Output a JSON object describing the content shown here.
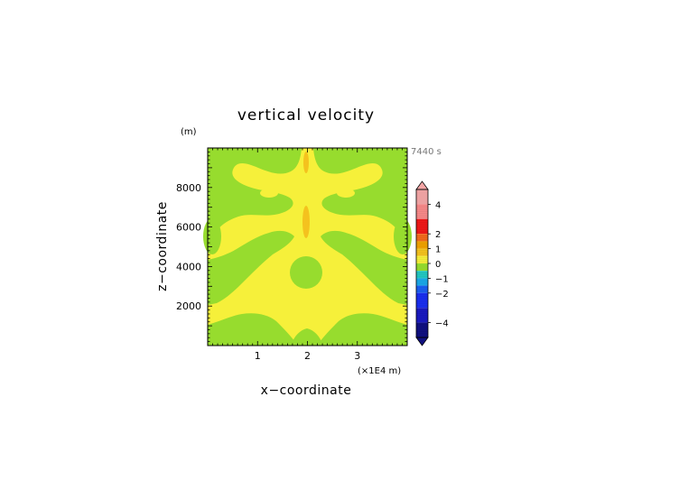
{
  "chart_data": {
    "type": "heatmap",
    "title": "vertical velocity",
    "xlabel": "x−coordinate",
    "ylabel": "z−coordinate",
    "x_unit": "(×1E4 m)",
    "y_unit": "(m)",
    "time_label": "7440 s",
    "xlim": [
      0,
      4
    ],
    "ylim": [
      0,
      10000
    ],
    "x_ticks": [
      {
        "value": 1,
        "label": "1"
      },
      {
        "value": 2,
        "label": "2"
      },
      {
        "value": 3,
        "label": "3"
      }
    ],
    "y_ticks": [
      {
        "value": 2000,
        "label": "2000"
      },
      {
        "value": 4000,
        "label": "4000"
      },
      {
        "value": 6000,
        "label": "6000"
      },
      {
        "value": 8000,
        "label": "8000"
      }
    ],
    "colorbar": {
      "min": -5,
      "max": 5,
      "tick_labels": [
        {
          "value": 4,
          "label": "4"
        },
        {
          "value": 2,
          "label": "2"
        },
        {
          "value": 1,
          "label": "1"
        },
        {
          "value": 0,
          "label": "0"
        },
        {
          "value": -1,
          "label": "−1"
        },
        {
          "value": -2,
          "label": "−2"
        },
        {
          "value": -4,
          "label": "−4"
        }
      ],
      "levels": [
        {
          "from": 4,
          "to": 5,
          "color": "#f4a6a6"
        },
        {
          "from": 3,
          "to": 4,
          "color": "#f78888"
        },
        {
          "from": 2,
          "to": 3,
          "color": "#f01818"
        },
        {
          "from": 1.5,
          "to": 2,
          "color": "#f26a1c"
        },
        {
          "from": 1,
          "to": 1.5,
          "color": "#f0a200"
        },
        {
          "from": 0.5,
          "to": 1,
          "color": "#f4c21e"
        },
        {
          "from": 0,
          "to": 0.5,
          "color": "#f6f03a"
        },
        {
          "from": -0.5,
          "to": 0,
          "color": "#97dc2e"
        },
        {
          "from": -1,
          "to": -0.5,
          "color": "#22c7c2"
        },
        {
          "from": -1.5,
          "to": -1,
          "color": "#1ba8e8"
        },
        {
          "from": -2,
          "to": -1.5,
          "color": "#1b5ff0"
        },
        {
          "from": -3,
          "to": -2,
          "color": "#1a2ef0"
        },
        {
          "from": -4,
          "to": -3,
          "color": "#1a1ac0"
        },
        {
          "from": -5,
          "to": -4,
          "color": "#101080"
        }
      ]
    },
    "field_colors": {
      "positive_0_0.5": "#f6f03a",
      "negative_-0.5_0": "#97dc2e",
      "positive_0.5_1": "#f4c21e"
    }
  }
}
